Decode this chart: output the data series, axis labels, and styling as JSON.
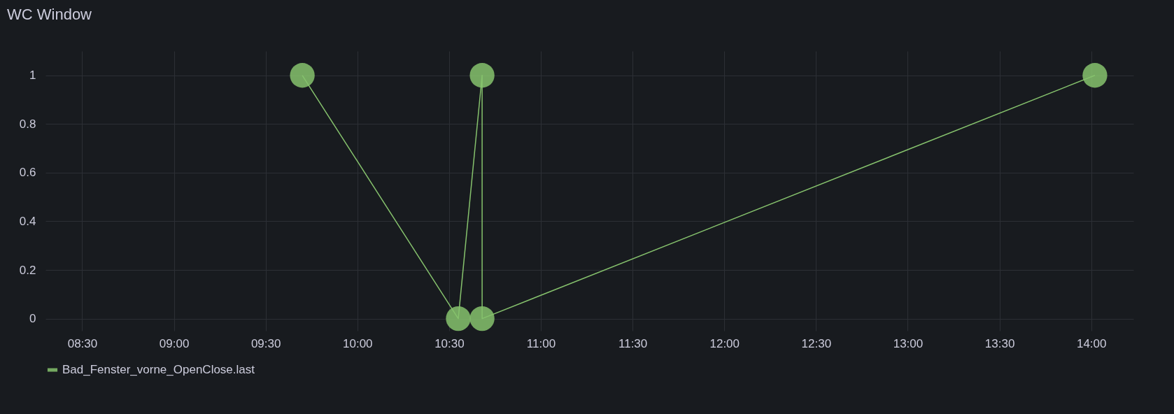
{
  "chart_data": {
    "type": "line",
    "title": "WC Window",
    "x": [
      9.7,
      10.55,
      10.68,
      10.68,
      14.02
    ],
    "series": [
      {
        "name": "Bad_Fenster_vorne_OpenClose.last",
        "color": "#86c26d",
        "values": [
          1,
          0,
          1,
          0,
          1
        ]
      }
    ],
    "xlim": [
      8.3,
      14.23
    ],
    "xticks": [
      {
        "value": 8.5,
        "label": "08:30"
      },
      {
        "value": 9,
        "label": "09:00"
      },
      {
        "value": 9.5,
        "label": "09:30"
      },
      {
        "value": 10,
        "label": "10:00"
      },
      {
        "value": 10.5,
        "label": "10:30"
      },
      {
        "value": 11,
        "label": "11:00"
      },
      {
        "value": 11.5,
        "label": "11:30"
      },
      {
        "value": 12,
        "label": "12:00"
      },
      {
        "value": 12.5,
        "label": "12:30"
      },
      {
        "value": 13,
        "label": "13:00"
      },
      {
        "value": 13.5,
        "label": "13:30"
      },
      {
        "value": 14,
        "label": "14:00"
      }
    ],
    "ylim": [
      -0.05,
      1.1
    ],
    "yticks": [
      0,
      0.2,
      0.4,
      0.6,
      0.8,
      1
    ],
    "grid": true,
    "legend": "bottom left",
    "marker": "circle",
    "line_style": "solid"
  }
}
